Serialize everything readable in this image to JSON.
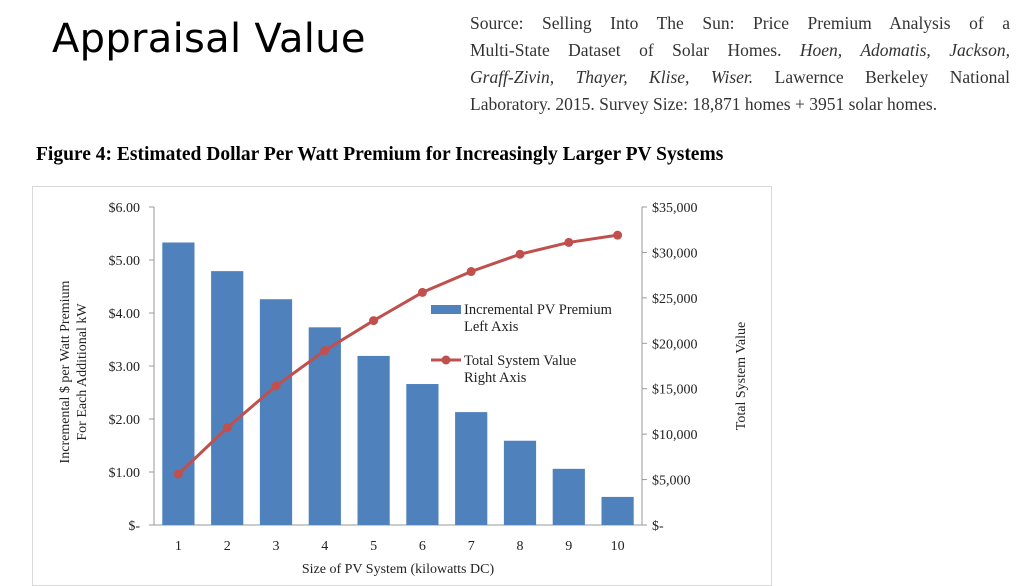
{
  "slide": {
    "title": "Appraisal Value",
    "source_lines": [
      "Source: Selling Into The Sun: Price Premium Analysis of a",
      "Multi-State Dataset of Solar Homes.",
      "Hoen, Adomatis, Jackson,",
      "Graff-Zivin, Thayer, Klise, Wiser.",
      "Lawernce Berkeley National",
      "Laboratory. 2015. Survey Size: 18,871 homes + 3951 solar homes."
    ],
    "figure_title": "Figure 4: Estimated Dollar Per Watt Premium for Increasingly Larger PV Systems"
  },
  "chart_data": {
    "type": "bar+line",
    "title": "",
    "xlabel": "Size of PV System (kilowatts DC)",
    "ylabel_left_line1": "Incremental $ per Watt Premium",
    "ylabel_left_line2": "For Each Additional kW",
    "ylabel_right": "Total System Value",
    "categories": [
      "1",
      "2",
      "3",
      "4",
      "5",
      "6",
      "7",
      "8",
      "9",
      "10"
    ],
    "left_axis": {
      "ylim": [
        0,
        6
      ],
      "ticks": [
        0,
        1,
        2,
        3,
        4,
        5,
        6
      ],
      "tick_labels": [
        "$-",
        "$1.00",
        "$2.00",
        "$3.00",
        "$4.00",
        "$5.00",
        "$6.00"
      ]
    },
    "right_axis": {
      "ylim": [
        0,
        35000
      ],
      "ticks": [
        0,
        5000,
        10000,
        15000,
        20000,
        25000,
        30000,
        35000
      ],
      "tick_labels": [
        "$-",
        "$5,000",
        "$10,000",
        "$15,000",
        "$20,000",
        "$25,000",
        "$30,000",
        "$35,000"
      ]
    },
    "series": [
      {
        "name": "Incremental PV Premium",
        "legend_sub": "Left Axis",
        "type": "bar",
        "axis": "left",
        "color": "#4f81bd",
        "values": [
          5.33,
          4.79,
          4.26,
          3.73,
          3.19,
          2.66,
          2.13,
          1.59,
          1.06,
          0.53
        ]
      },
      {
        "name": "Total System Value",
        "legend_sub": "Right Axis",
        "type": "line",
        "axis": "right",
        "color": "#c0504d",
        "values": [
          5600,
          10700,
          15300,
          19200,
          22500,
          25600,
          27900,
          29800,
          31100,
          31900
        ]
      }
    ],
    "legend_position": "center-right",
    "grid": false
  }
}
